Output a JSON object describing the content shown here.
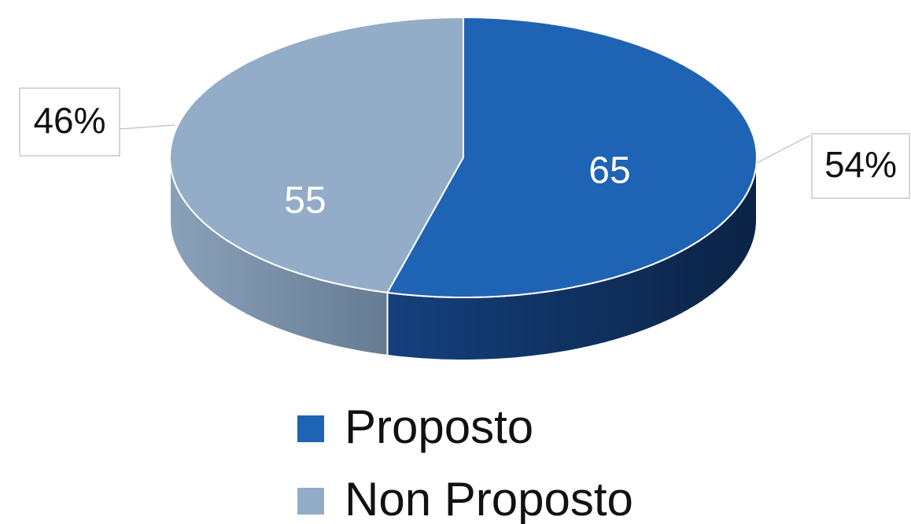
{
  "chart_data": {
    "type": "pie3d",
    "categories": [
      "Proposto",
      "Non Proposto"
    ],
    "values": [
      65,
      55
    ],
    "percent_values": [
      54,
      46
    ],
    "percent_labels": [
      "54%",
      "46%"
    ],
    "colors": [
      "#1f63b5",
      "#93adc8"
    ],
    "legend": "bottom"
  }
}
